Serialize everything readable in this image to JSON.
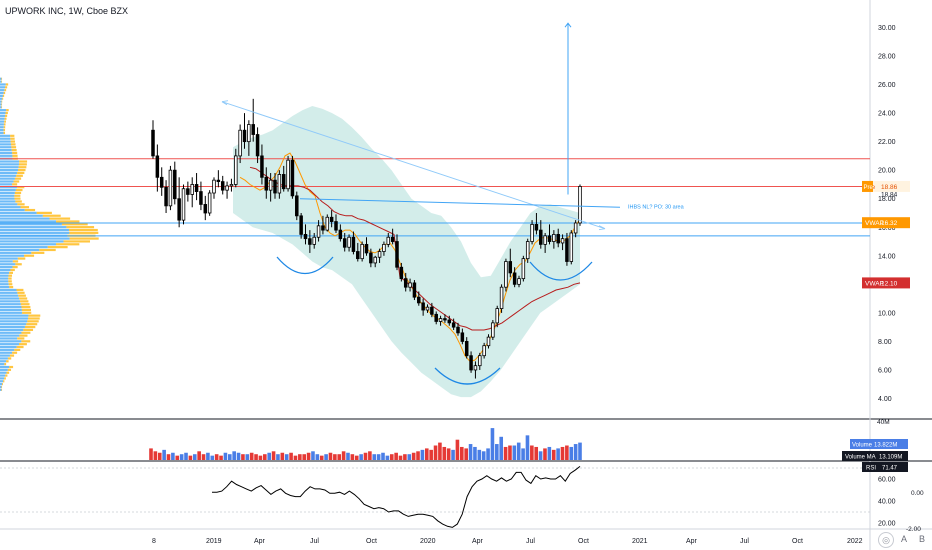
{
  "header": {
    "symbol_line": "UPWORK INC, 1W, Cboe BZX"
  },
  "chart_data": [
    {
      "type": "candlestick",
      "title": "UPWORK INC, 1W, Cboe BZX",
      "y_axis": {
        "ticks": [
          4,
          6,
          8,
          10,
          12,
          14,
          16,
          18,
          20,
          22,
          24,
          26,
          28,
          30
        ],
        "tick_labels": [
          "4.00",
          "6.00",
          "8.00",
          "10.00",
          "12.00",
          "14.00",
          "16.00",
          "18.00",
          "20.00",
          "22.00",
          "24.00",
          "26.00",
          "28.00",
          "30.00"
        ],
        "ylim": [
          3,
          31.2
        ],
        "side": "right"
      },
      "x_axis": {
        "tick_labels": [
          "8",
          "2019",
          "Apr",
          "Jul",
          "Oct",
          "2020",
          "Apr",
          "Jul",
          "Oct",
          "2021",
          "Apr",
          "Jul",
          "Oct",
          "2022"
        ]
      },
      "price_labels": [
        {
          "text": "Pre",
          "value": "18.86",
          "color": "#ff9800"
        },
        {
          "text": "",
          "value": "18.84",
          "color": "#131722"
        },
        {
          "text": "VWAP",
          "value": "16.32",
          "color": "#ff9800"
        },
        {
          "text": "VWAP",
          "value": "12.10",
          "color": "#d32f2f"
        }
      ],
      "annotation": "IHBS NL? PO: 30 area",
      "horizontal_lines": [
        {
          "y": 20.8,
          "color": "#ef5350"
        },
        {
          "y": 18.86,
          "color": "#ef5350"
        },
        {
          "y": 16.3,
          "color": "#42a5f5"
        },
        {
          "y": 15.4,
          "color": "#42a5f5"
        }
      ],
      "candles": [
        [
          22.8,
          23.5,
          20.8,
          21.0
        ],
        [
          21.0,
          21.8,
          18.5,
          19.5
        ],
        [
          19.5,
          20.2,
          18.2,
          18.8
        ],
        [
          18.8,
          19.3,
          17.0,
          17.5
        ],
        [
          17.5,
          20.3,
          17.2,
          20.0
        ],
        [
          20.0,
          20.6,
          17.6,
          18.0
        ],
        [
          18.0,
          19.5,
          16.0,
          16.5
        ],
        [
          16.5,
          19.0,
          16.2,
          18.7
        ],
        [
          18.7,
          19.2,
          17.8,
          18.3
        ],
        [
          18.3,
          19.5,
          17.4,
          19.0
        ],
        [
          19.0,
          19.8,
          17.9,
          18.5
        ],
        [
          18.5,
          19.2,
          17.2,
          17.6
        ],
        [
          17.6,
          18.2,
          16.5,
          17.0
        ],
        [
          17.0,
          18.6,
          16.8,
          18.4
        ],
        [
          18.4,
          19.5,
          18.0,
          19.3
        ],
        [
          19.3,
          20.0,
          18.8,
          19.2
        ],
        [
          19.2,
          19.6,
          18.3,
          18.6
        ],
        [
          18.6,
          19.2,
          18.0,
          18.9
        ],
        [
          18.9,
          19.4,
          18.5,
          19.0
        ],
        [
          19.0,
          21.5,
          18.8,
          21.0
        ],
        [
          21.0,
          23.2,
          20.5,
          22.8
        ],
        [
          22.8,
          24.0,
          21.5,
          22.0
        ],
        [
          22.0,
          23.5,
          21.0,
          23.2
        ],
        [
          23.2,
          25.0,
          22.0,
          22.5
        ],
        [
          22.5,
          23.0,
          20.5,
          21.0
        ],
        [
          21.0,
          21.8,
          19.0,
          19.5
        ],
        [
          19.5,
          20.2,
          18.0,
          18.6
        ],
        [
          18.6,
          19.8,
          17.8,
          19.3
        ],
        [
          19.3,
          19.8,
          18.0,
          18.4
        ],
        [
          18.4,
          20.0,
          18.0,
          19.7
        ],
        [
          19.7,
          20.3,
          18.5,
          18.7
        ],
        [
          18.7,
          21.0,
          18.5,
          20.7
        ],
        [
          20.7,
          21.0,
          18.0,
          18.2
        ],
        [
          18.2,
          18.5,
          16.5,
          16.8
        ],
        [
          16.8,
          17.0,
          15.2,
          15.5
        ],
        [
          15.5,
          16.2,
          14.8,
          15.2
        ],
        [
          15.2,
          15.8,
          14.2,
          14.8
        ],
        [
          14.8,
          15.6,
          14.5,
          15.3
        ],
        [
          15.3,
          16.5,
          15.0,
          16.1
        ],
        [
          16.1,
          16.8,
          15.5,
          15.8
        ],
        [
          15.8,
          16.9,
          15.7,
          16.7
        ],
        [
          16.7,
          17.2,
          16.0,
          16.4
        ],
        [
          16.4,
          16.9,
          15.6,
          15.8
        ],
        [
          15.8,
          16.2,
          15.0,
          15.2
        ],
        [
          15.2,
          15.6,
          14.3,
          14.6
        ],
        [
          14.6,
          15.5,
          14.3,
          15.3
        ],
        [
          15.3,
          15.7,
          14.1,
          14.3
        ],
        [
          14.3,
          14.9,
          13.6,
          13.8
        ],
        [
          13.8,
          15.0,
          13.6,
          14.8
        ],
        [
          14.8,
          15.3,
          14.0,
          14.2
        ],
        [
          14.2,
          14.5,
          13.2,
          13.5
        ],
        [
          13.5,
          14.0,
          13.2,
          13.9
        ],
        [
          13.9,
          14.5,
          13.5,
          14.3
        ],
        [
          14.3,
          15.0,
          14.0,
          14.8
        ],
        [
          14.8,
          15.6,
          14.6,
          15.3
        ],
        [
          15.3,
          15.9,
          14.8,
          15.0
        ],
        [
          15.0,
          15.5,
          13.0,
          13.2
        ],
        [
          13.2,
          13.5,
          12.2,
          12.4
        ],
        [
          12.4,
          12.8,
          11.5,
          11.8
        ],
        [
          11.8,
          12.4,
          11.5,
          12.1
        ],
        [
          12.1,
          12.3,
          10.9,
          11.1
        ],
        [
          11.1,
          11.5,
          10.5,
          10.7
        ],
        [
          10.7,
          11.0,
          9.8,
          10.2
        ],
        [
          10.2,
          10.6,
          10.0,
          10.4
        ],
        [
          10.4,
          10.7,
          9.7,
          9.9
        ],
        [
          9.9,
          10.1,
          9.2,
          9.4
        ],
        [
          9.4,
          9.8,
          9.1,
          9.6
        ],
        [
          9.6,
          9.9,
          9.3,
          9.5
        ],
        [
          9.5,
          9.8,
          9.1,
          9.3
        ],
        [
          9.3,
          9.6,
          8.8,
          9.0
        ],
        [
          9.0,
          9.3,
          8.4,
          8.6
        ],
        [
          8.6,
          8.9,
          7.8,
          8.0
        ],
        [
          8.0,
          8.3,
          6.8,
          7.0
        ],
        [
          7.0,
          7.3,
          5.8,
          6.0
        ],
        [
          6.0,
          6.6,
          5.4,
          6.3
        ],
        [
          6.3,
          7.2,
          6.0,
          7.0
        ],
        [
          7.0,
          7.9,
          6.8,
          7.7
        ],
        [
          7.7,
          8.5,
          7.5,
          8.3
        ],
        [
          8.3,
          9.5,
          8.1,
          9.3
        ],
        [
          9.3,
          10.5,
          9.0,
          10.3
        ],
        [
          10.3,
          12.0,
          10.0,
          11.8
        ],
        [
          11.8,
          13.8,
          11.5,
          13.6
        ],
        [
          13.6,
          14.5,
          12.5,
          12.8
        ],
        [
          12.8,
          13.2,
          11.8,
          12.0
        ],
        [
          12.0,
          12.6,
          11.8,
          12.4
        ],
        [
          12.4,
          14.0,
          12.2,
          13.8
        ],
        [
          13.8,
          15.2,
          13.5,
          15.0
        ],
        [
          15.0,
          16.5,
          14.8,
          16.2
        ],
        [
          16.2,
          17.0,
          15.5,
          15.8
        ],
        [
          15.8,
          16.5,
          14.5,
          14.8
        ],
        [
          14.8,
          15.6,
          14.2,
          15.4
        ],
        [
          15.4,
          16.2,
          14.8,
          15.0
        ],
        [
          15.0,
          15.8,
          14.5,
          15.5
        ],
        [
          15.5,
          15.9,
          14.6,
          14.9
        ],
        [
          14.9,
          15.5,
          14.4,
          15.2
        ],
        [
          15.2,
          15.6,
          13.3,
          13.6
        ],
        [
          13.6,
          15.8,
          13.4,
          15.6
        ],
        [
          15.6,
          16.5,
          15.3,
          16.3
        ],
        [
          16.3,
          19.0,
          16.1,
          18.86
        ]
      ],
      "band_top": [
        21.6,
        22.0,
        22.3,
        22.5,
        22.8,
        23.3,
        23.8,
        24.2,
        24.5,
        24.3,
        24.0,
        23.6,
        23.0,
        22.3,
        21.5,
        20.8,
        20.0,
        19.0,
        18.0,
        17.5,
        17.0,
        16.8,
        16.0,
        15.0,
        13.5,
        12.5,
        12.6,
        13.8,
        15.0,
        16.0,
        17.0,
        17.5,
        17.6,
        17.4,
        17.2,
        17.0
      ],
      "band_bottom": [
        17.0,
        16.5,
        16.0,
        15.8,
        15.6,
        15.2,
        14.8,
        14.2,
        13.6,
        13.2,
        13.0,
        12.5,
        12.0,
        11.0,
        10.0,
        9.0,
        8.0,
        7.2,
        6.5,
        5.8,
        5.3,
        4.8,
        4.3,
        4.1,
        4.1,
        4.5,
        5.2,
        6.0,
        7.0,
        8.0,
        9.0,
        10.0,
        10.5,
        11.0,
        11.5,
        12.0
      ],
      "sma_fast": [
        19.5,
        19.3,
        19.0,
        18.8,
        18.6,
        18.8,
        19.2,
        19.6,
        20.2,
        21.0,
        21.2,
        20.6,
        19.8,
        19.0,
        18.5,
        18.2,
        17.0,
        16.0,
        15.6,
        15.4,
        15.6,
        15.8,
        15.8,
        15.5,
        15.0,
        14.6,
        14.3,
        14.2,
        14.4,
        14.8,
        14.9,
        14.4,
        13.5,
        12.6,
        12.0,
        11.4,
        10.8,
        10.4,
        10.0,
        9.7,
        9.5,
        9.2,
        8.9,
        8.5,
        7.8,
        7.0,
        6.6,
        6.7,
        7.1,
        7.6,
        8.2,
        9.0,
        10.0,
        11.2,
        12.3,
        13.0,
        13.4,
        13.6,
        14.2,
        14.9,
        15.2,
        15.3,
        15.2,
        15.1,
        15.0,
        15.1,
        15.4,
        16.0,
        16.6
      ],
      "sma_slow": [
        20.2,
        20.1,
        19.8,
        19.5,
        19.2,
        19.0,
        18.9,
        18.9,
        18.9,
        18.8,
        18.6,
        18.2,
        17.8,
        17.5,
        17.1,
        16.9,
        16.8,
        16.8,
        16.6,
        16.5,
        16.3,
        16.1,
        15.9,
        15.7,
        15.5,
        12.5,
        12.2,
        11.8,
        11.4,
        11.0,
        10.6,
        10.3,
        10.0,
        9.7,
        9.4,
        9.1,
        9.0,
        8.8,
        8.8,
        8.8,
        8.9,
        9.1,
        9.3,
        9.6,
        9.9,
        10.2,
        10.5,
        10.8,
        11.0,
        11.2,
        11.4,
        11.6,
        11.7,
        11.8,
        12.0,
        12.1
      ],
      "trendline": {
        "from": [
          24.8,
          0
        ],
        "to": [
          16.2,
          1
        ]
      },
      "target_arrow": {
        "base": 18.3,
        "tip": 30.3
      }
    },
    {
      "type": "bar",
      "title": "Volume",
      "series": [
        {
          "name": "Volume",
          "last": "13.822M"
        },
        {
          "name": "Volume MA",
          "last": "13.109M"
        }
      ],
      "axis_label": "40M",
      "values": [
        8,
        6,
        5,
        7,
        4,
        5,
        3,
        4,
        5,
        3,
        4,
        6,
        4,
        5,
        3,
        4,
        3,
        5,
        4,
        6,
        5,
        4,
        4,
        5,
        4,
        3,
        4,
        5,
        6,
        4,
        5,
        4,
        5,
        3,
        4,
        4,
        5,
        6,
        4,
        3,
        4,
        5,
        4,
        4,
        6,
        5,
        4,
        3,
        4,
        5,
        6,
        4,
        4,
        5,
        3,
        4,
        5,
        3,
        4,
        4,
        5,
        6,
        7,
        8,
        7,
        10,
        12,
        9,
        8,
        7,
        14,
        9,
        8,
        11,
        9,
        7,
        6,
        8,
        22,
        11,
        16,
        9,
        10,
        10,
        12,
        8,
        17,
        10,
        9,
        6,
        8,
        9,
        7,
        8,
        9,
        10,
        9,
        11,
        12
      ],
      "up": [
        0,
        0,
        0,
        1,
        0,
        1,
        0,
        1,
        1,
        0,
        1,
        0,
        0,
        1,
        1,
        0,
        0,
        1,
        1,
        1,
        1,
        0,
        1,
        0,
        0,
        0,
        0,
        1,
        0,
        1,
        0,
        1,
        0,
        0,
        0,
        0,
        0,
        1,
        1,
        0,
        1,
        0,
        0,
        0,
        0,
        1,
        0,
        0,
        1,
        0,
        0,
        1,
        1,
        1,
        1,
        0,
        0,
        0,
        0,
        1,
        0,
        0,
        1,
        0,
        0,
        0,
        0,
        0,
        0,
        1,
        0,
        0,
        0,
        1,
        1,
        1,
        1,
        1,
        1,
        1,
        1,
        0,
        0,
        1,
        1,
        1,
        1,
        0,
        0,
        1,
        0,
        1,
        0,
        1,
        0,
        0,
        1,
        1,
        1
      ]
    },
    {
      "type": "line",
      "title": "RSI",
      "series": [
        {
          "name": "RSI",
          "last": "71.47"
        }
      ],
      "y_ticks": [
        20,
        40,
        60
      ],
      "y_tick_labels": [
        "20.00",
        "40.00",
        "60.00"
      ],
      "extra_labels": [
        "0.00",
        "-2.00"
      ],
      "values": [
        48,
        48,
        49,
        53,
        58,
        55,
        53,
        51,
        49,
        52,
        54,
        50,
        46,
        49,
        51,
        47,
        45,
        44,
        44,
        49,
        53,
        51,
        51,
        50,
        47,
        47,
        48,
        46,
        49,
        46,
        42,
        37,
        35,
        33,
        34,
        33,
        30,
        31,
        31,
        28,
        26,
        27,
        28,
        28,
        27,
        26,
        22,
        19,
        17,
        16,
        19,
        28,
        44,
        53,
        58,
        60,
        63,
        60,
        58,
        61,
        58,
        60,
        66,
        66,
        59,
        56,
        63,
        60,
        61,
        60,
        60,
        63,
        58,
        65,
        68,
        71.47
      ]
    }
  ]
}
